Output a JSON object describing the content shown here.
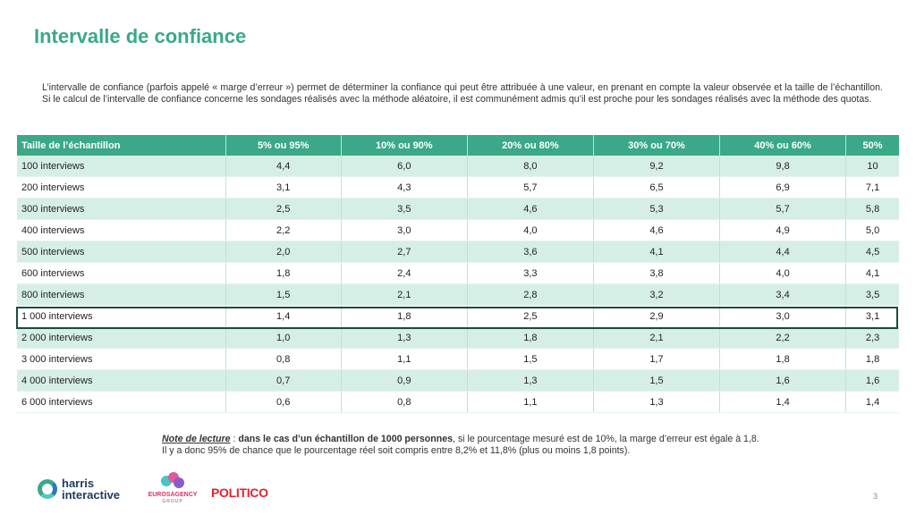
{
  "page": {
    "title": "Intervalle de confiance",
    "intro": "L’intervalle de confiance (parfois appelé « marge d’erreur ») permet de déterminer la confiance qui peut être attribuée à une valeur, en prenant en compte la valeur observée et la taille de l’échantillon. Si le calcul de l’intervalle de confiance concerne les sondages réalisés avec la méthode aléatoire, il est communément admis qu’il est proche pour les sondages réalisés avec la méthode des quotas.",
    "page_number": "3"
  },
  "table": {
    "headers": [
      "Taille de l’échantillon",
      "5% ou 95%",
      "10% ou 90%",
      "20% ou 80%",
      "30% ou 70%",
      "40% ou 60%",
      "50%"
    ],
    "rows": [
      [
        "100 interviews",
        "4,4",
        "6,0",
        "8,0",
        "9,2",
        "9,8",
        "10"
      ],
      [
        "200 interviews",
        "3,1",
        "4,3",
        "5,7",
        "6,5",
        "6,9",
        "7,1"
      ],
      [
        "300 interviews",
        "2,5",
        "3,5",
        "4,6",
        "5,3",
        "5,7",
        "5,8"
      ],
      [
        "400 interviews",
        "2,2",
        "3,0",
        "4,0",
        "4,6",
        "4,9",
        "5,0"
      ],
      [
        "500 interviews",
        "2,0",
        "2,7",
        "3,6",
        "4,1",
        "4,4",
        "4,5"
      ],
      [
        "600 interviews",
        "1,8",
        "2,4",
        "3,3",
        "3,8",
        "4,0",
        "4,1"
      ],
      [
        "800 interviews",
        "1,5",
        "2,1",
        "2,8",
        "3,2",
        "3,4",
        "3,5"
      ],
      [
        "1 000 interviews",
        "1,4",
        "1,8",
        "2,5",
        "2,9",
        "3,0",
        "3,1"
      ],
      [
        "2 000 interviews",
        "1,0",
        "1,3",
        "1,8",
        "2,1",
        "2,2",
        "2,3"
      ],
      [
        "3 000 interviews",
        "0,8",
        "1,1",
        "1,5",
        "1,7",
        "1,8",
        "1,8"
      ],
      [
        "4 000 interviews",
        "0,7",
        "0,9",
        "1,3",
        "1,5",
        "1,6",
        "1,6"
      ],
      [
        "6 000 interviews",
        "0,6",
        "0,8",
        "1,1",
        "1,3",
        "1,4",
        "1,4"
      ]
    ],
    "highlighted_row": "1 000 interviews"
  },
  "note": {
    "lead": "Note de lecture",
    "sep": " : ",
    "bold": "dans le cas d’un échantillon de 1000 personnes",
    "rest1": ", si le pourcentage mesuré est de 10%, la marge d’erreur est égale à 1,8.",
    "line2": "Il y a donc 95% de chance que le pourcentage réel soit compris entre 8,2% et 11,8% (plus ou moins 1,8 points)."
  },
  "logos": {
    "harris_line1": "harris",
    "harris_line2": "interactive",
    "euros_name": "EUROSAGENCY",
    "euros_group": "GROUP",
    "politico": "POLITICO"
  },
  "colors": {
    "accent": "#3aa889",
    "highlight_border": "#1d4a45",
    "politico_red": "#e0242f"
  }
}
